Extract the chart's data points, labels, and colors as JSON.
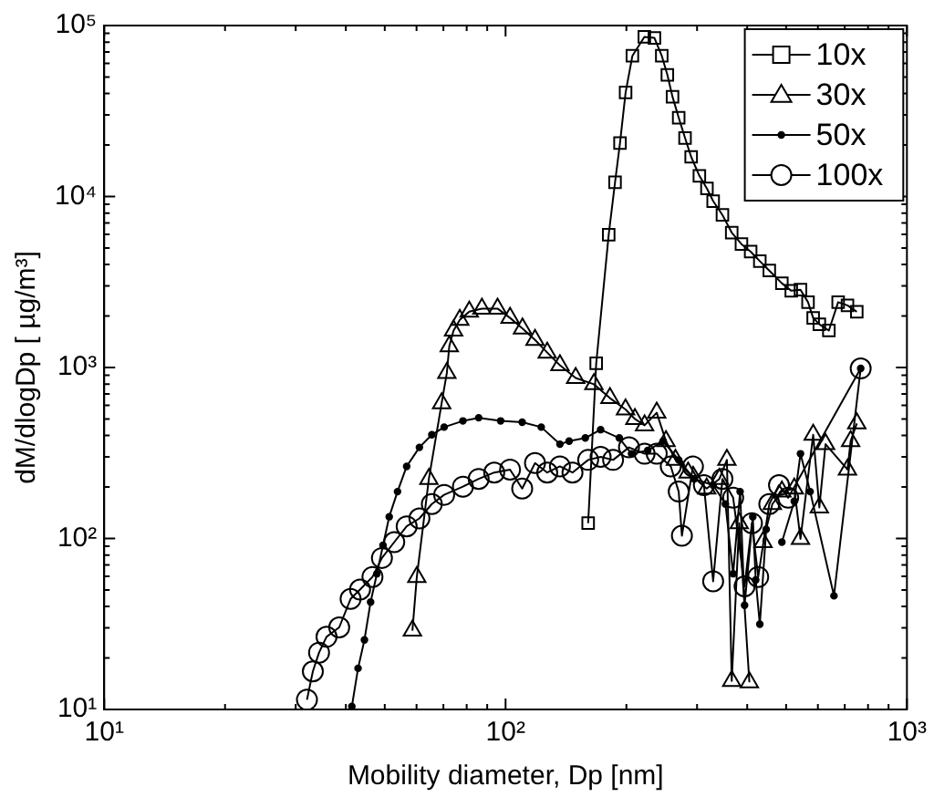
{
  "chart_data": {
    "type": "line",
    "xlabel": "Mobility diameter, Dp [nm]",
    "ylabel": "dM/dlogDp [ µg/m³]",
    "log": "xy",
    "xlim": [
      10,
      1000
    ],
    "ylim": [
      10,
      100000
    ],
    "xticks": [
      {
        "value": 10,
        "label": "10¹"
      },
      {
        "value": 20,
        "label": null
      },
      {
        "value": 30,
        "label": null
      },
      {
        "value": 40,
        "label": null
      },
      {
        "value": 50,
        "label": null
      },
      {
        "value": 60,
        "label": null
      },
      {
        "value": 70,
        "label": null
      },
      {
        "value": 80,
        "label": null
      },
      {
        "value": 90,
        "label": null
      },
      {
        "value": 100,
        "label": "10²"
      },
      {
        "value": 200,
        "label": null
      },
      {
        "value": 300,
        "label": null
      },
      {
        "value": 400,
        "label": null
      },
      {
        "value": 500,
        "label": null
      },
      {
        "value": 600,
        "label": null
      },
      {
        "value": 700,
        "label": null
      },
      {
        "value": 800,
        "label": null
      },
      {
        "value": 900,
        "label": null
      },
      {
        "value": 1000,
        "label": "10³"
      }
    ],
    "yticks": [
      {
        "value": 10,
        "label": "10¹"
      },
      {
        "value": 20,
        "label": null
      },
      {
        "value": 30,
        "label": null
      },
      {
        "value": 40,
        "label": null
      },
      {
        "value": 50,
        "label": null
      },
      {
        "value": 60,
        "label": null
      },
      {
        "value": 70,
        "label": null
      },
      {
        "value": 80,
        "label": null
      },
      {
        "value": 90,
        "label": null
      },
      {
        "value": 100,
        "label": "10²"
      },
      {
        "value": 200,
        "label": null
      },
      {
        "value": 300,
        "label": null
      },
      {
        "value": 400,
        "label": null
      },
      {
        "value": 500,
        "label": null
      },
      {
        "value": 600,
        "label": null
      },
      {
        "value": 700,
        "label": null
      },
      {
        "value": 800,
        "label": null
      },
      {
        "value": 900,
        "label": null
      },
      {
        "value": 1000,
        "label": "10³"
      },
      {
        "value": 2000,
        "label": null
      },
      {
        "value": 3000,
        "label": null
      },
      {
        "value": 4000,
        "label": null
      },
      {
        "value": 5000,
        "label": null
      },
      {
        "value": 6000,
        "label": null
      },
      {
        "value": 7000,
        "label": null
      },
      {
        "value": 8000,
        "label": null
      },
      {
        "value": 9000,
        "label": null
      },
      {
        "value": 10000,
        "label": "10⁴"
      },
      {
        "value": 20000,
        "label": null
      },
      {
        "value": 30000,
        "label": null
      },
      {
        "value": 40000,
        "label": null
      },
      {
        "value": 50000,
        "label": null
      },
      {
        "value": 60000,
        "label": null
      },
      {
        "value": 70000,
        "label": null
      },
      {
        "value": 80000,
        "label": null
      },
      {
        "value": 90000,
        "label": null
      },
      {
        "value": 100000,
        "label": "10⁵"
      }
    ],
    "grid": false,
    "legend": "top right",
    "line_style": "solid",
    "series": [
      {
        "name": "10x",
        "color": "#000000",
        "marker": "square",
        "x": [
          160.6,
          168.2,
          180.7,
          187.4,
          192.8,
          199.1,
          207,
          221.7,
          234.9,
          245,
          253,
          260.6,
          270,
          280,
          290,
          304,
          317.5,
          329,
          347,
          366,
          387,
          408,
          430,
          454,
          488,
          515,
          543,
          567,
          584,
          605,
          639,
          674,
          711,
          750
        ],
        "values": [
          122.9,
          1057,
          5985,
          12130,
          20560,
          40600,
          66500,
          85800,
          84700,
          66500,
          51500,
          38300,
          28900,
          22000,
          17060,
          13210,
          11140,
          9400,
          7800,
          6150,
          5270,
          4760,
          4190,
          3690,
          3110,
          2810,
          2850,
          2410,
          1950,
          1790,
          1645,
          2410,
          2310,
          2120
        ]
      },
      {
        "name": "30x",
        "color": "#000000",
        "marker": "triangle",
        "x": [
          58.6,
          60.1,
          64.4,
          69.3,
          71.4,
          72.4,
          74.2,
          76.9,
          81.2,
          87.3,
          95.5,
          102.6,
          110.2,
          118.4,
          127,
          136.6,
          149.5,
          166,
          182,
          199,
          210,
          222,
          238,
          251,
          265,
          285,
          317,
          341,
          356,
          366,
          382,
          405,
          420,
          438,
          462,
          488,
          524,
          543,
          584,
          605,
          627,
          711,
          724,
          750
        ],
        "values": [
          28.9,
          59.6,
          223,
          618,
          930,
          1330,
          1645,
          1900,
          2120,
          2210,
          2210,
          1950,
          1690,
          1450,
          1222,
          1030,
          869,
          798,
          662,
          568,
          500,
          459,
          544,
          371,
          288,
          243,
          196,
          223,
          288,
          14.7,
          123,
          14.4,
          null,
          95.2,
          159,
          188,
          196,
          99.4,
          404,
          152,
          356,
          253,
          371,
          471
        ]
      },
      {
        "name": "50x",
        "color": "#000000",
        "marker": "dot",
        "x": [
          41.4,
          42.9,
          44.5,
          46.1,
          47.8,
          49.5,
          51.3,
          53.8,
          56.7,
          61,
          65.5,
          70.3,
          78.3,
          85.7,
          97.2,
          110,
          122.7,
          136.6,
          144,
          158,
          172.5,
          192,
          206,
          226,
          247,
          270,
          295,
          329,
          353,
          369,
          384,
          394,
          413,
          420,
          430,
          446,
          465,
          488,
          524,
          543,
          574,
          658,
          767
        ],
        "values": [
          10.4,
          17.4,
          25.5,
          42.5,
          62.2,
          91.2,
          134,
          188,
          264,
          341,
          404,
          448,
          487,
          508,
          487,
          479,
          448,
          356,
          371,
          387,
          433,
          387,
          313,
          327,
          371,
          288,
          223,
          205,
          159,
          62.2,
          188,
          40.7,
          134,
          57.2,
          31.5,
          113,
          null,
          95.2,
          165,
          313,
          188,
          46.2,
          987
        ]
      },
      {
        "name": "100x",
        "color": "#000000",
        "marker": "circle",
        "x": [
          32,
          33.1,
          34.3,
          35.8,
          38.5,
          41.1,
          43.4,
          46.6,
          49.2,
          52.8,
          56.7,
          61,
          65.5,
          70.3,
          78.3,
          85.7,
          93.7,
          102.6,
          110,
          118.4,
          127,
          136.6,
          146.8,
          160.6,
          172.5,
          185.3,
          203,
          222,
          238,
          258,
          270,
          275,
          293,
          312,
          329,
          347,
          369,
          394,
          411,
          426,
          454,
          480,
          506,
          767
        ],
        "values": [
          11.4,
          16.7,
          21.5,
          26.6,
          30.2,
          44.3,
          50.3,
          59.6,
          76.9,
          95.2,
          117.8,
          131,
          159,
          180,
          201,
          223,
          243,
          253,
          196,
          276,
          243,
          264,
          243,
          288,
          300,
          288,
          341,
          313,
          313,
          264,
          188,
          103.7,
          264,
          205,
          56.2,
          223,
          173,
          52.5,
          123,
          59.6,
          159,
          205,
          173,
          987
        ]
      }
    ]
  }
}
